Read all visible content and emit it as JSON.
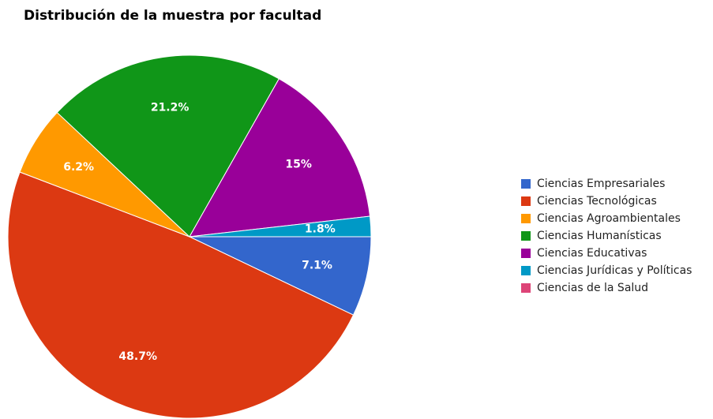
{
  "chart_data": {
    "type": "pie",
    "title": "Distribución de la muestra por facultad",
    "categories": [
      "Ciencias Empresariales",
      "Ciencias Tecnológicas",
      "Ciencias Agroambientales",
      "Ciencias Humanísticas",
      "Ciencias Educativas",
      "Ciencias Jurídicas y Políticas",
      "Ciencias de la Salud"
    ],
    "values": [
      7.1,
      48.7,
      6.2,
      21.2,
      15,
      1.8,
      0
    ],
    "value_labels": [
      "7.1%",
      "48.7%",
      "6.2%",
      "21.2%",
      "15%",
      "1.8%",
      null
    ],
    "colors": [
      "#3366cc",
      "#dc3912",
      "#ff9900",
      "#109618",
      "#990099",
      "#0099c6",
      "#dd4477"
    ],
    "legend": "right"
  }
}
